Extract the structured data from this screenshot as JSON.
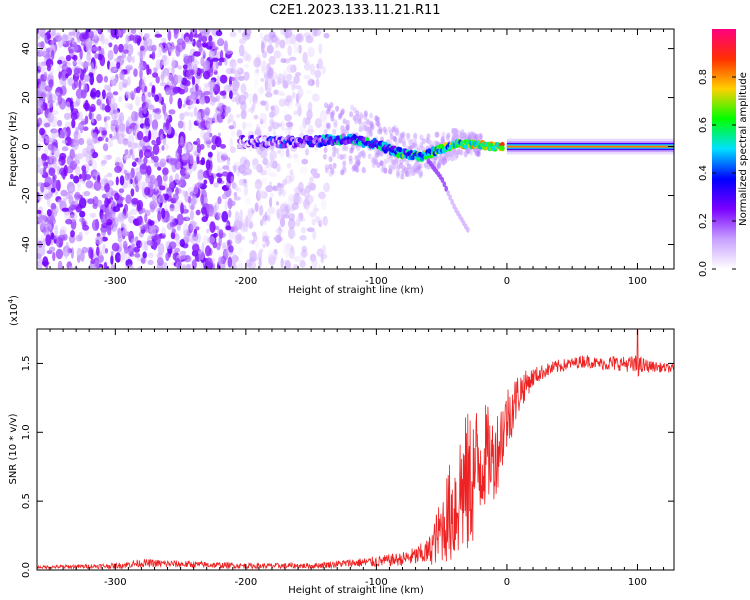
{
  "title": "C2E1.2023.133.11.21.R11",
  "chart_data": [
    {
      "type": "heatmap",
      "xlabel": "Height of straight line (km)",
      "ylabel": "Frequency (Hz)",
      "xlim": [
        -360,
        128
      ],
      "ylim": [
        -50,
        48
      ],
      "xticks": [
        -300,
        -200,
        -100,
        0,
        100
      ],
      "yticks": [
        -40,
        -20,
        0,
        20,
        40
      ],
      "colorbar": {
        "label": "Normalized spectral amplitude",
        "range": [
          0,
          1
        ],
        "ticks": [
          0.0,
          0.2,
          0.4,
          0.6,
          0.8
        ],
        "colors": [
          "#ffffff",
          "#c8a0ff",
          "#7a00ff",
          "#0000ff",
          "#00e0ff",
          "#00ff00",
          "#ffd000",
          "#ff3000",
          "#ff0080"
        ]
      },
      "carrier": {
        "center_freq_hz": [
          [
            -200,
            2
          ],
          [
            -150,
            2
          ],
          [
            -120,
            3
          ],
          [
            -100,
            1
          ],
          [
            -80,
            -3
          ],
          [
            -65,
            -4
          ],
          [
            -55,
            -2
          ],
          [
            -40,
            1
          ],
          [
            -25,
            1
          ],
          [
            -10,
            0
          ],
          [
            0,
            0
          ],
          [
            128,
            0
          ]
        ],
        "branch": [
          [
            -60,
            -6
          ],
          [
            -50,
            -13
          ],
          [
            -40,
            -25
          ],
          [
            -30,
            -34
          ]
        ],
        "clean_start_km": 0
      }
    },
    {
      "type": "line",
      "xlabel": "Height of straight line (km)",
      "ylabel": "SNR (10 * v/v)",
      "y_multiplier": "(x10^4)",
      "xlim": [
        -360,
        128
      ],
      "ylim": [
        0,
        1.75
      ],
      "xticks": [
        -300,
        -200,
        -100,
        0,
        100
      ],
      "yticks": [
        0.0,
        0.5,
        1.0,
        1.5
      ],
      "color": "#ee2222",
      "envelope": {
        "x": [
          -360,
          -300,
          -280,
          -200,
          -150,
          -120,
          -100,
          -80,
          -70,
          -60,
          -50,
          -45,
          -40,
          -35,
          -30,
          -25,
          -20,
          -15,
          -10,
          -5,
          0,
          5,
          10,
          15,
          20,
          30,
          40,
          50,
          60,
          70,
          80,
          90,
          100,
          110,
          128
        ],
        "mean": [
          0.02,
          0.03,
          0.05,
          0.03,
          0.03,
          0.05,
          0.06,
          0.08,
          0.1,
          0.13,
          0.3,
          0.4,
          0.45,
          0.6,
          0.6,
          0.7,
          0.8,
          0.85,
          0.8,
          0.95,
          1.1,
          1.2,
          1.3,
          1.35,
          1.4,
          1.45,
          1.48,
          1.5,
          1.52,
          1.5,
          1.5,
          1.5,
          1.48,
          1.48,
          1.46
        ],
        "spread": [
          0.01,
          0.02,
          0.03,
          0.02,
          0.02,
          0.03,
          0.04,
          0.05,
          0.07,
          0.1,
          0.25,
          0.35,
          0.45,
          0.5,
          0.55,
          0.5,
          0.45,
          0.35,
          0.3,
          0.3,
          0.25,
          0.2,
          0.15,
          0.1,
          0.07,
          0.05,
          0.05,
          0.04,
          0.05,
          0.04,
          0.06,
          0.05,
          0.08,
          0.04,
          0.03
        ]
      },
      "max_y": 1.75,
      "max_x": 100
    }
  ]
}
